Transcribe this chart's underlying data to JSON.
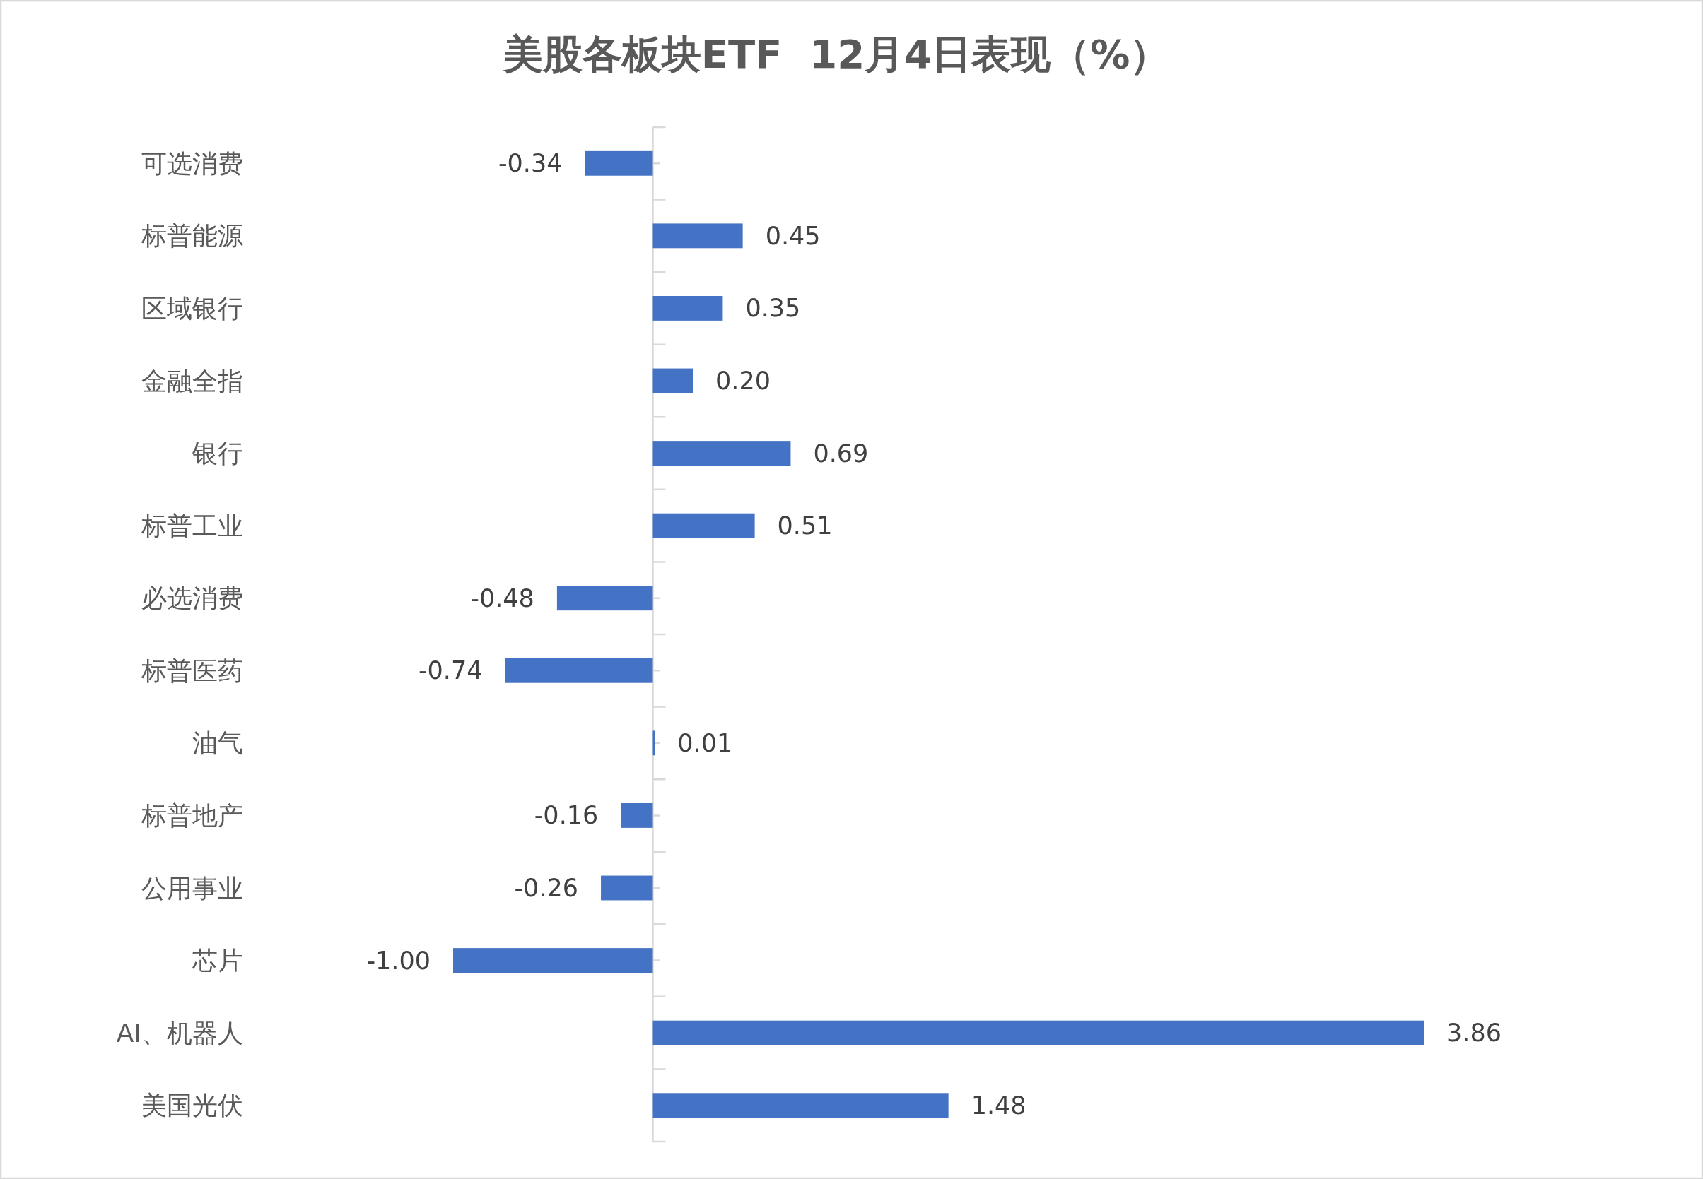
{
  "chart_data": {
    "type": "bar",
    "orientation": "horizontal",
    "title": "美股各板块ETF  12月4日表现（%）",
    "categories": [
      "可选消费",
      "标普能源",
      "区域银行",
      "金融全指",
      "银行",
      "标普工业",
      "必选消费",
      "标普医药",
      "油气",
      "标普地产",
      "公用事业",
      "芯片",
      "AI、机器人",
      "美国光伏"
    ],
    "values": [
      -0.34,
      0.45,
      0.35,
      0.2,
      0.69,
      0.51,
      -0.48,
      -0.74,
      0.01,
      -0.16,
      -0.26,
      -1.0,
      3.86,
      1.48
    ],
    "value_labels": [
      "-0.34",
      "0.45",
      "0.35",
      "0.20",
      "0.69",
      "0.51",
      "-0.48",
      "-0.74",
      "0.01",
      "-0.16",
      "-0.26",
      "-1.00",
      "3.86",
      "1.48"
    ],
    "color": "#4472c4",
    "data_labels": true
  }
}
